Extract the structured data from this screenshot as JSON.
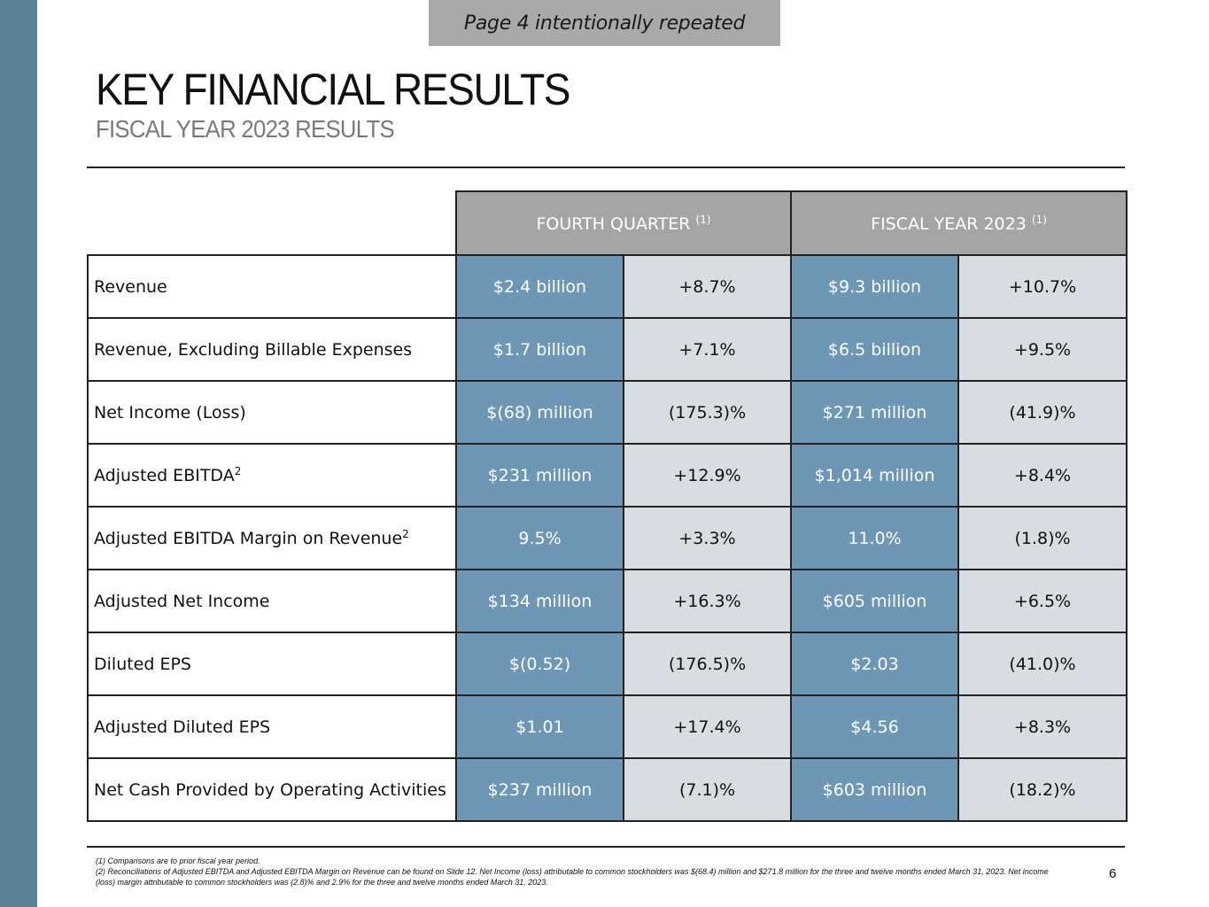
{
  "banner": "Page 4 intentionally repeated",
  "title": "KEY FINANCIAL RESULTS",
  "subtitle": "FISCAL YEAR 2023 RESULTS",
  "table": {
    "groups": [
      {
        "label": "FOURTH QUARTER",
        "note": "(1)"
      },
      {
        "label": "FISCAL YEAR 2023",
        "note": "(1)"
      }
    ],
    "rows": [
      {
        "label": "Revenue",
        "sup": "",
        "q_value": "$2.4 billion",
        "q_change": "+8.7%",
        "fy_value": "$9.3 billion",
        "fy_change": "+10.7%"
      },
      {
        "label": "Revenue, Excluding Billable Expenses",
        "sup": "",
        "q_value": "$1.7 billion",
        "q_change": "+7.1%",
        "fy_value": "$6.5 billion",
        "fy_change": "+9.5%"
      },
      {
        "label": "Net Income (Loss)",
        "sup": "",
        "q_value": "$(68) million",
        "q_change": "(175.3)%",
        "fy_value": "$271 million",
        "fy_change": "(41.9)%"
      },
      {
        "label": "Adjusted EBITDA",
        "sup": "2",
        "q_value": "$231 million",
        "q_change": "+12.9%",
        "fy_value": "$1,014 million",
        "fy_change": "+8.4%"
      },
      {
        "label": "Adjusted EBITDA Margin on Revenue",
        "sup": "2",
        "q_value": "9.5%",
        "q_change": "+3.3%",
        "fy_value": "11.0%",
        "fy_change": "(1.8)%"
      },
      {
        "label": "Adjusted Net Income",
        "sup": "",
        "q_value": "$134 million",
        "q_change": "+16.3%",
        "fy_value": "$605 million",
        "fy_change": "+6.5%"
      },
      {
        "label": "Diluted EPS",
        "sup": "",
        "q_value": "$(0.52)",
        "q_change": "(176.5)%",
        "fy_value": "$2.03",
        "fy_change": "(41.0)%"
      },
      {
        "label": "Adjusted Diluted EPS",
        "sup": "",
        "q_value": "$1.01",
        "q_change": "+17.4%",
        "fy_value": "$4.56",
        "fy_change": "+8.3%"
      },
      {
        "label": "Net Cash Provided by Operating Activities",
        "sup": "",
        "q_value": "$237 million",
        "q_change": "(7.1)%",
        "fy_value": "$603 million",
        "fy_change": "(18.2)%"
      }
    ]
  },
  "footnotes": [
    "(1) Comparisons are to prior fiscal year period.",
    "(2) Reconciliations of Adjusted EBITDA and Adjusted EBITDA Margin on Revenue can be found on Slide 12. Net Income (loss) attributable to common stockholders was $(68.4) million and $271.8 million for the three and twelve months ended March 31, 2023.  Net income (loss) margin attributable to common stockholders was (2.8)% and 2.9% for the three and twelve months ended March 31, 2023."
  ],
  "page_number": "6",
  "colors": {
    "left_bar": "#5b8196",
    "banner_bg": "#a9a9a9",
    "header_bg": "#a5a5a5",
    "value_cell_bg": "#6d97b4",
    "change_cell_bg": "#d9dce0"
  }
}
